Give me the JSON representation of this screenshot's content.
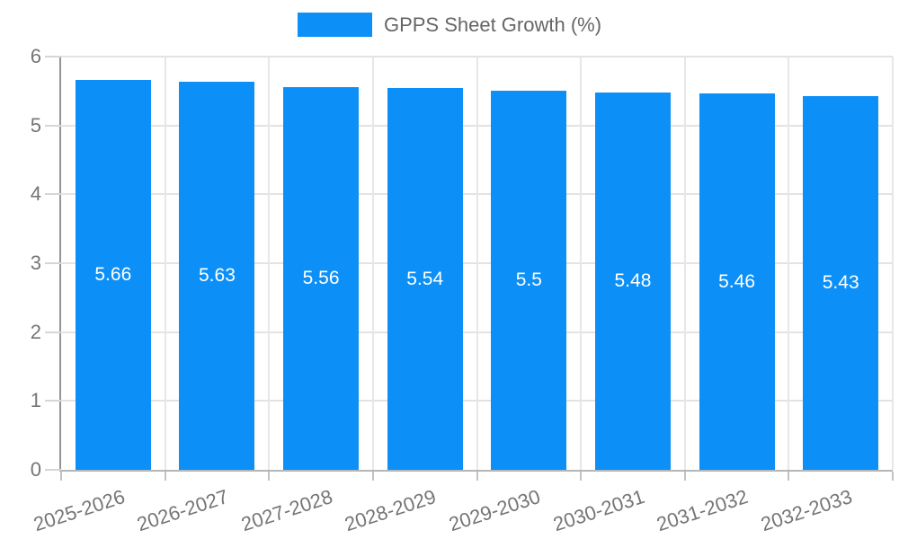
{
  "chart_data": {
    "type": "bar",
    "title": "",
    "legend": "GPPS Sheet Growth (%)",
    "legend_position": "top-center",
    "categories": [
      "2025-2026",
      "2026-2027",
      "2027-2028",
      "2028-2029",
      "2029-2030",
      "2030-2031",
      "2031-2032",
      "2032-2033"
    ],
    "series": [
      {
        "name": "GPPS Sheet Growth (%)",
        "values": [
          5.66,
          5.63,
          5.56,
          5.54,
          5.5,
          5.48,
          5.46,
          5.43
        ],
        "value_labels": [
          "5.66",
          "5.63",
          "5.56",
          "5.54",
          "5.5",
          "5.48",
          "5.46",
          "5.43"
        ]
      }
    ],
    "xlabel": "",
    "ylabel": "",
    "ylim": [
      0,
      6
    ],
    "yticks": [
      0,
      1,
      2,
      3,
      4,
      5,
      6
    ],
    "ytick_labels": [
      "0",
      "1",
      "2",
      "3",
      "4",
      "5",
      "6"
    ],
    "grid": true,
    "x_labels_rotated": true,
    "colors": {
      "bar": "#0c90f8",
      "value_label_text": "#ffffff",
      "axis_text": "#757575",
      "legend_text": "#666666",
      "gridline_h": "#e3e3e3",
      "gridline_v": "#e7e7e7",
      "y_axis_line": "#949494",
      "x_axis_line": "#b6b6b6",
      "y_tick": "#d6d6d6",
      "x_tick": "#c2c2c2",
      "background": "#ffffff"
    }
  }
}
